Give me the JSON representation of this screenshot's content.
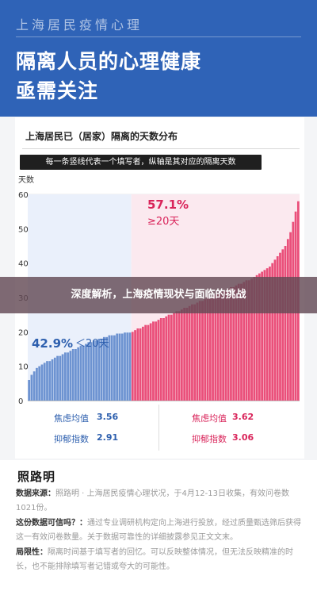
{
  "header": {
    "brand": "上海居民疫情心理",
    "headline_line1": "隔离人员的心理健康",
    "headline_line2": "亟需关注"
  },
  "banner": {
    "text": "深度解析，上海疫情现状与面临的挑战"
  },
  "colors": {
    "header_bg": "#2f63b7",
    "blue_series": "#6d93d1",
    "red_series": "#ea4f7a",
    "banner_bg": "#644a56"
  },
  "chart_data": {
    "type": "bar",
    "title": "上海居民已（居家）隔离的天数分布",
    "note": "每一条竖线代表一个填写者，纵轴是其对应的隔离天数",
    "ylabel": "天数",
    "ylim": [
      0,
      60
    ],
    "yticks": [
      "0",
      "10",
      "20",
      "30",
      "40",
      "50",
      "60"
    ],
    "threshold_days": 20,
    "groups": [
      {
        "label_pct": "42.9%",
        "label_cond": "＜20天",
        "color": "#6d93d1",
        "values": [
          6,
          7.5,
          8.5,
          9.5,
          10,
          10.5,
          11,
          11.5,
          11.5,
          12,
          12.5,
          13,
          13,
          13.5,
          14,
          14,
          14.5,
          15,
          15,
          15.5,
          16,
          16,
          16.5,
          17,
          17,
          17.5,
          17.5,
          18,
          18,
          18.5,
          18.5,
          19,
          19,
          19,
          19.5,
          19.5,
          19.5,
          19.8,
          19.8,
          19.8
        ],
        "stats": [
          {
            "label": "焦虑均值",
            "value": "3.56"
          },
          {
            "label": "抑郁指数",
            "value": "2.91"
          }
        ]
      },
      {
        "label_pct": "57.1%",
        "label_cond": "≥20天",
        "color": "#ea4f7a",
        "values": [
          20,
          20.5,
          21,
          21,
          21.5,
          22,
          22,
          22.5,
          23,
          23,
          23.5,
          24,
          24,
          24.5,
          25,
          25,
          25.5,
          26,
          26,
          26.5,
          27,
          27,
          27.5,
          28,
          28,
          28.5,
          29,
          29,
          29.5,
          30,
          30,
          30.5,
          31,
          31,
          31.5,
          32,
          32,
          32.5,
          33,
          33,
          33.5,
          34,
          34,
          34.5,
          35,
          35,
          35.5,
          36,
          36.5,
          37,
          37.5,
          38,
          38.5,
          39,
          40,
          41,
          42,
          43,
          44,
          45,
          47,
          49,
          52,
          55,
          58
        ],
        "stats": [
          {
            "label": "焦虑均值",
            "value": "3.62"
          },
          {
            "label": "抑郁指数",
            "value": "3.06"
          }
        ]
      }
    ]
  },
  "footer": {
    "logo_text": "照路明",
    "sections": [
      {
        "label": "数据来源：",
        "text": "照路明 · 上海居民疫情心理状况，于4月12-13日收集，有效问卷数1021份。"
      },
      {
        "label": "这份数据可信吗？：",
        "text": "通过专业调研机构定向上海进行投放，经过质量甄选筛后获得这一有效问卷数量。关于数据可靠性的详细披露参见正文文末。"
      },
      {
        "label": "局限性：",
        "text": "隔离时间基于填写者的回忆。可以反映整体情况，但无法反映精准的时长，也不能排除填写者记错或夸大的可能性。"
      }
    ]
  }
}
